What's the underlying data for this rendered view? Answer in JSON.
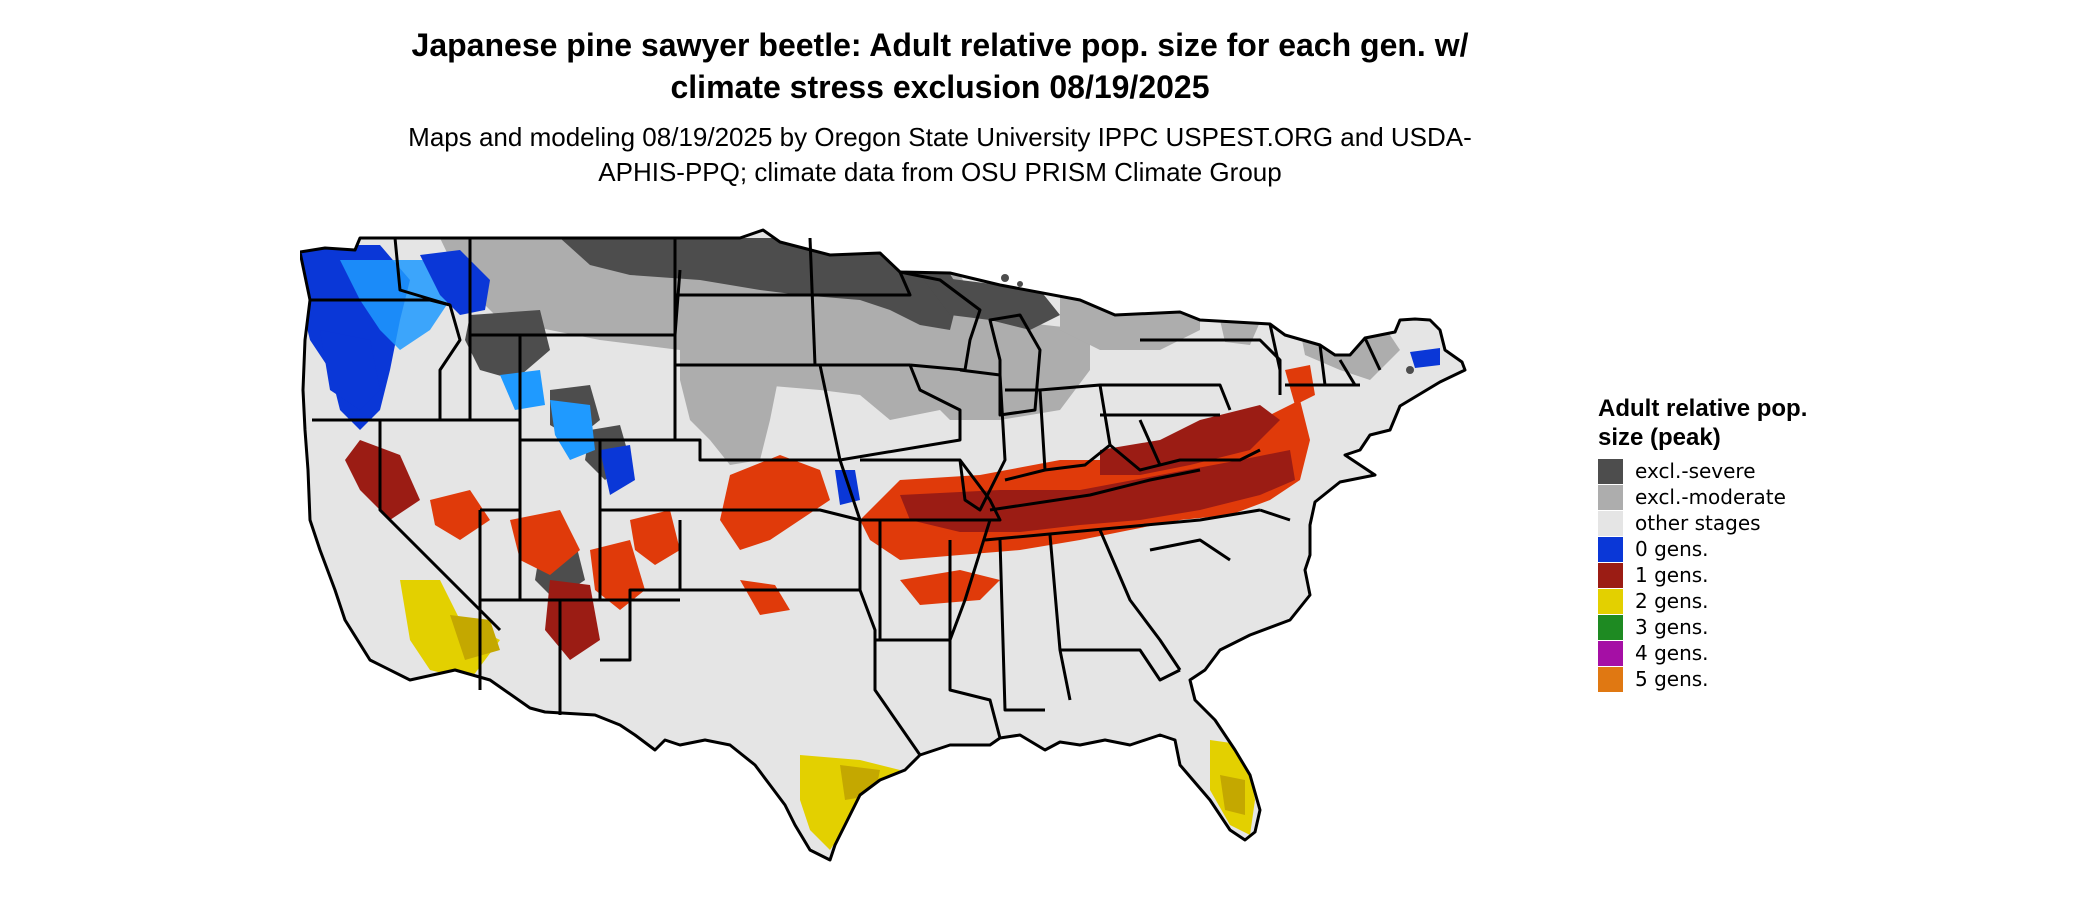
{
  "title": "Japanese pine sawyer beetle: Adult relative pop. size for each gen. w/ climate stress exclusion 08/19/2025",
  "subtitle": "Maps and modeling 08/19/2025 by Oregon State University IPPC USPEST.ORG and USDA-APHIS-PPQ; climate data from OSU PRISM Climate Group",
  "map": {
    "region": "Contiguous United States",
    "colors": {
      "excl_severe": "#4d4d4d",
      "excl_moderate": "#adadad",
      "other_stages": "#e5e5e5",
      "gen0": "#0a37d7",
      "gen0_light": "#1f9aff",
      "gen1_dark": "#9b1c14",
      "gen1_orange": "#e03a0a",
      "gen2": "#e3d000",
      "gen2_dark": "#c4a800",
      "border": "#000000"
    }
  },
  "legend": {
    "title": "Adult relative pop. size (peak)",
    "items": [
      {
        "label": "excl.-severe",
        "color": "#4d4d4d"
      },
      {
        "label": "excl.-moderate",
        "color": "#adadad"
      },
      {
        "label": "other stages",
        "color": "#e5e5e5"
      },
      {
        "label": "0 gens.",
        "color": "#0a37d7"
      },
      {
        "label": "1 gens.",
        "color": "#9b1c14"
      },
      {
        "label": "2 gens.",
        "color": "#e3d000"
      },
      {
        "label": "3 gens.",
        "color": "#1e8a22"
      },
      {
        "label": "4 gens.",
        "color": "#a50fa5"
      },
      {
        "label": "5 gens.",
        "color": "#e07812"
      }
    ]
  }
}
